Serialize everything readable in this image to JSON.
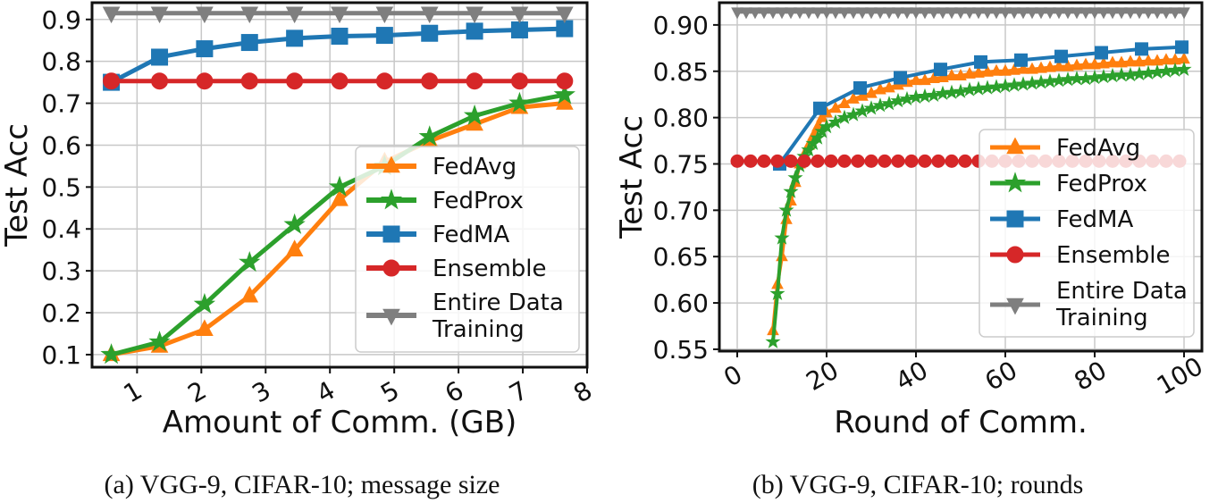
{
  "captions": {
    "a": "(a) VGG-9, CIFAR-10; message size",
    "b": "(b) VGG-9, CIFAR-10; rounds"
  },
  "colors": {
    "FedAvg": "#ff7f0e",
    "FedProx": "#2ca02c",
    "FedMA": "#1f77b4",
    "Ensemble": "#d62728",
    "Entire Data Training": "#7f7f7f"
  },
  "chart_data": [
    {
      "type": "line",
      "xlabel": "Amount of Comm. (GB)",
      "ylabel": "Test Acc",
      "xlim": [
        0.3,
        8.0
      ],
      "ylim": [
        0.07,
        0.94
      ],
      "xticks": [
        "1",
        "2",
        "3",
        "4",
        "5",
        "6",
        "7",
        "8"
      ],
      "yticks": [
        "0.1",
        "0.2",
        "0.3",
        "0.4",
        "0.5",
        "0.6",
        "0.7",
        "0.8",
        "0.9"
      ],
      "grid": true,
      "legend_position": "lower-right",
      "series": [
        {
          "name": "FedAvg",
          "marker": "triangle-up",
          "x": [
            0.6,
            1.35,
            2.05,
            2.75,
            3.45,
            4.15,
            4.85,
            5.55,
            6.25,
            6.95,
            7.65
          ],
          "y": [
            0.1,
            0.12,
            0.16,
            0.24,
            0.35,
            0.47,
            0.56,
            0.61,
            0.65,
            0.69,
            0.7
          ]
        },
        {
          "name": "FedProx",
          "marker": "star",
          "x": [
            0.6,
            1.35,
            2.05,
            2.75,
            3.45,
            4.15,
            4.85,
            5.55,
            6.25,
            6.95,
            7.65
          ],
          "y": [
            0.1,
            0.13,
            0.22,
            0.32,
            0.41,
            0.5,
            0.55,
            0.62,
            0.67,
            0.7,
            0.72
          ]
        },
        {
          "name": "FedMA",
          "marker": "square",
          "x": [
            0.6,
            1.35,
            2.05,
            2.75,
            3.45,
            4.15,
            4.85,
            5.55,
            6.25,
            6.95,
            7.65
          ],
          "y": [
            0.75,
            0.81,
            0.83,
            0.845,
            0.855,
            0.86,
            0.862,
            0.867,
            0.872,
            0.875,
            0.878
          ]
        },
        {
          "name": "Ensemble",
          "marker": "circle",
          "x": [
            0.6,
            1.35,
            2.05,
            2.75,
            3.45,
            4.15,
            4.85,
            5.55,
            6.25,
            6.95,
            7.65
          ],
          "y": [
            0.753,
            0.753,
            0.753,
            0.753,
            0.753,
            0.753,
            0.753,
            0.753,
            0.753,
            0.753,
            0.753
          ]
        },
        {
          "name": "Entire Data Training",
          "legend_lines": [
            "Entire Data",
            "Training"
          ],
          "marker": "triangle-down",
          "x": [
            0.6,
            1.35,
            2.05,
            2.75,
            3.45,
            4.15,
            4.85,
            5.55,
            6.25,
            6.95,
            7.65
          ],
          "y": [
            0.915,
            0.915,
            0.915,
            0.915,
            0.915,
            0.915,
            0.915,
            0.915,
            0.915,
            0.915,
            0.915
          ]
        }
      ]
    },
    {
      "type": "line",
      "xlabel": "Round of Comm.",
      "ylabel": "Test Acc",
      "xlim": [
        -4,
        104
      ],
      "ylim": [
        0.548,
        0.924
      ],
      "xticks": [
        "0",
        "20",
        "40",
        "60",
        "80",
        "100"
      ],
      "yticks": [
        "0.55",
        "0.60",
        "0.65",
        "0.70",
        "0.75",
        "0.80",
        "0.85",
        "0.90"
      ],
      "grid": true,
      "legend_position": "lower-right",
      "series": [
        {
          "name": "FedAvg",
          "marker": "triangle-up",
          "x": [
            8,
            9,
            10,
            11,
            12,
            13,
            14,
            15,
            16,
            17,
            18,
            19,
            20,
            22,
            24,
            26,
            28,
            30,
            32,
            34,
            36,
            38,
            40,
            42,
            44,
            46,
            48,
            50,
            52,
            54,
            56,
            58,
            60,
            62,
            64,
            66,
            68,
            70,
            72,
            74,
            76,
            78,
            80,
            82,
            84,
            86,
            88,
            90,
            92,
            94,
            96,
            98,
            100
          ],
          "y": [
            0.57,
            0.62,
            0.65,
            0.69,
            0.71,
            0.73,
            0.75,
            0.76,
            0.77,
            0.78,
            0.79,
            0.8,
            0.805,
            0.81,
            0.815,
            0.82,
            0.823,
            0.826,
            0.83,
            0.832,
            0.835,
            0.838,
            0.84,
            0.84,
            0.842,
            0.843,
            0.845,
            0.845,
            0.847,
            0.848,
            0.849,
            0.85,
            0.85,
            0.851,
            0.852,
            0.852,
            0.853,
            0.854,
            0.855,
            0.855,
            0.856,
            0.857,
            0.857,
            0.858,
            0.859,
            0.859,
            0.86,
            0.86,
            0.861,
            0.861,
            0.862,
            0.862,
            0.863
          ]
        },
        {
          "name": "FedProx",
          "marker": "star",
          "x": [
            8,
            9,
            10,
            11,
            12,
            13,
            14,
            15,
            16,
            17,
            18,
            19,
            20,
            22,
            24,
            26,
            28,
            30,
            32,
            34,
            36,
            38,
            40,
            42,
            44,
            46,
            48,
            50,
            52,
            54,
            56,
            58,
            60,
            62,
            64,
            66,
            68,
            70,
            72,
            74,
            76,
            78,
            80,
            82,
            84,
            86,
            88,
            90,
            92,
            94,
            96,
            98,
            100
          ],
          "y": [
            0.558,
            0.61,
            0.67,
            0.7,
            0.72,
            0.735,
            0.748,
            0.758,
            0.765,
            0.772,
            0.778,
            0.785,
            0.79,
            0.795,
            0.8,
            0.803,
            0.807,
            0.81,
            0.813,
            0.815,
            0.818,
            0.82,
            0.822,
            0.823,
            0.824,
            0.826,
            0.827,
            0.828,
            0.83,
            0.831,
            0.832,
            0.833,
            0.834,
            0.835,
            0.836,
            0.837,
            0.838,
            0.839,
            0.84,
            0.841,
            0.842,
            0.842,
            0.843,
            0.844,
            0.845,
            0.846,
            0.846,
            0.847,
            0.848,
            0.849,
            0.85,
            0.851,
            0.852
          ]
        },
        {
          "name": "FedMA",
          "marker": "square",
          "x": [
            9.5,
            18.5,
            27.5,
            36.5,
            45.5,
            54.5,
            63.5,
            72.5,
            81.5,
            90.5,
            99.5
          ],
          "y": [
            0.75,
            0.81,
            0.832,
            0.843,
            0.852,
            0.86,
            0.862,
            0.866,
            0.87,
            0.874,
            0.876
          ]
        },
        {
          "name": "Ensemble",
          "marker": "circle",
          "x": [
            0,
            3,
            6,
            9,
            12,
            15,
            18,
            21,
            24,
            27,
            30,
            33,
            36,
            39,
            42,
            45,
            48,
            51,
            54,
            57,
            60,
            63,
            66,
            69,
            72,
            75,
            78,
            81,
            84,
            87,
            90,
            93,
            96,
            99
          ],
          "y": [
            0.753,
            0.753,
            0.753,
            0.753,
            0.753,
            0.753,
            0.753,
            0.753,
            0.753,
            0.753,
            0.753,
            0.753,
            0.753,
            0.753,
            0.753,
            0.753,
            0.753,
            0.753,
            0.753,
            0.753,
            0.753,
            0.753,
            0.753,
            0.753,
            0.753,
            0.753,
            0.753,
            0.753,
            0.753,
            0.753,
            0.753,
            0.753,
            0.753,
            0.753
          ]
        },
        {
          "name": "Entire Data Training",
          "legend_lines": [
            "Entire Data",
            "Training"
          ],
          "marker": "triangle-down",
          "x": [
            0,
            2,
            4,
            6,
            8,
            10,
            12,
            14,
            16,
            18,
            20,
            22,
            24,
            26,
            28,
            30,
            32,
            34,
            36,
            38,
            40,
            42,
            44,
            46,
            48,
            50,
            52,
            54,
            56,
            58,
            60,
            62,
            64,
            66,
            68,
            70,
            72,
            74,
            76,
            78,
            80,
            82,
            84,
            86,
            88,
            90,
            92,
            94,
            96,
            98,
            100
          ],
          "y": [
            0.914,
            0.914,
            0.914,
            0.914,
            0.914,
            0.914,
            0.914,
            0.914,
            0.914,
            0.914,
            0.914,
            0.914,
            0.914,
            0.914,
            0.914,
            0.914,
            0.914,
            0.914,
            0.914,
            0.914,
            0.914,
            0.914,
            0.914,
            0.914,
            0.914,
            0.914,
            0.914,
            0.914,
            0.914,
            0.914,
            0.914,
            0.914,
            0.914,
            0.914,
            0.914,
            0.914,
            0.914,
            0.914,
            0.914,
            0.914,
            0.914,
            0.914,
            0.914,
            0.914,
            0.914,
            0.914,
            0.914,
            0.914,
            0.914,
            0.914,
            0.914
          ]
        }
      ]
    }
  ]
}
